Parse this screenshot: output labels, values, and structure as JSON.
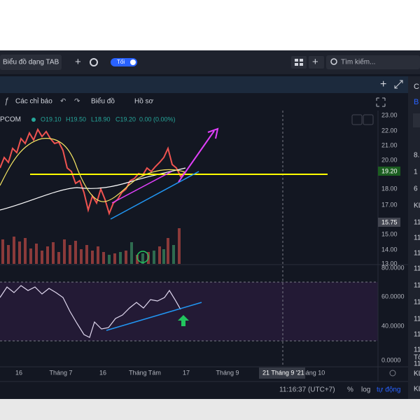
{
  "toolbar": {
    "tab": "Biểu đồ dạng TAB",
    "theme_toggle": "Tối",
    "search": "Tìm kiếm..."
  },
  "chart_toolbar": {
    "indicators": "Các chỉ báo",
    "chart": "Biểu đồ",
    "profile": "Hồ sơ"
  },
  "legend": {
    "symbol": "PCOM",
    "open": "O19.10",
    "high": "H19.50",
    "low": "L18.90",
    "close": "C19.20",
    "change": "0.00 (0.00%)"
  },
  "price_axis": [
    "23.00",
    "22.00",
    "21.00",
    "20.00",
    "18.00",
    "17.00",
    "15.00",
    "14.00",
    "13.00"
  ],
  "price_badges": {
    "last": "19.20",
    "low": "15.75"
  },
  "rsi_axis": [
    "80.0000",
    "60.0000",
    "40.0000",
    "0.0000"
  ],
  "time_axis": [
    "16",
    "Tháng 7",
    "16",
    "Tháng Tám",
    "17",
    "Tháng 9",
    "háng 10"
  ],
  "crosshair_date": "21 Tháng 9 '21",
  "status_bar": {
    "time": "11:16:37 (UTC+7)",
    "percent": "%",
    "log": "log",
    "auto": "tự động"
  },
  "side_panel": [
    "C",
    "B",
    "8.",
    "1",
    "6",
    "KL",
    "11",
    "11",
    "11",
    "11",
    "11",
    "11",
    "11",
    "11",
    "11",
    "11",
    "Tổ",
    "KL",
    "KL"
  ]
}
